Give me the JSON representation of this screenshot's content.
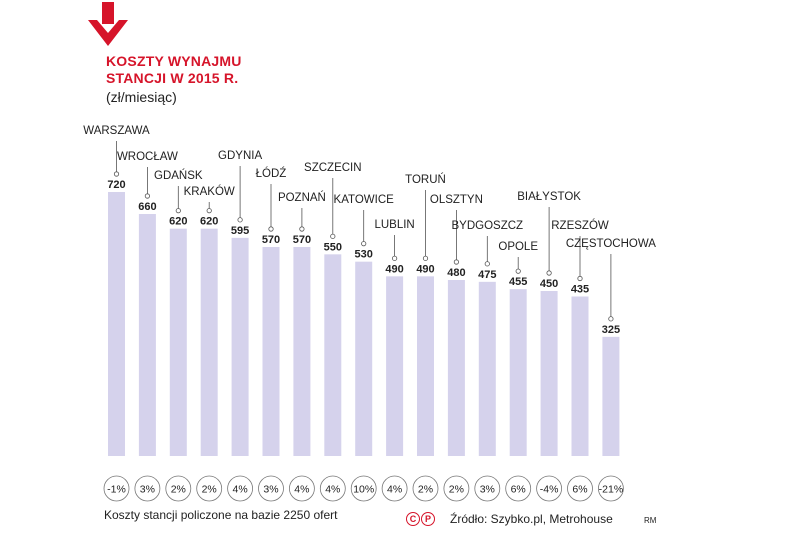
{
  "colors": {
    "accent": "#d6142a",
    "bar": "#d5d2ec",
    "text": "#222222"
  },
  "header": {
    "title_line1": "KOSZTY WYNAJMU",
    "title_line2": "STANCJI W 2015 R.",
    "unit": "(zł/miesiąc)",
    "arrow_icon": "down-arrow-icon"
  },
  "footer": {
    "note": "Koszty stancji policzone na bazie 2250 ofert",
    "logo_c": "C",
    "logo_p": "P",
    "source": "Źródło: Szybko.pl, Metrohouse",
    "author": "RM"
  },
  "chart_data": {
    "type": "bar",
    "categories": [
      "WARSZAWA",
      "WROCŁAW",
      "GDAŃSK",
      "KRAKÓW",
      "GDYNIA",
      "ŁÓDŹ",
      "POZNAŃ",
      "SZCZECIN",
      "KATOWICE",
      "LUBLIN",
      "TORUŃ",
      "OLSZTYN",
      "BYDGOSZCZ",
      "OPOLE",
      "BIAŁYSTOK",
      "RZESZÓW",
      "CZĘSTOCHOWA"
    ],
    "values": [
      720,
      660,
      620,
      620,
      595,
      570,
      570,
      550,
      530,
      490,
      490,
      480,
      475,
      455,
      450,
      435,
      325
    ],
    "value_labels": [
      "720",
      "660",
      "620",
      "620",
      "595",
      "570",
      "570",
      "550",
      "530",
      "490",
      "490",
      "480",
      "475",
      "455",
      "450",
      "435",
      "325"
    ],
    "changes": [
      "-1%",
      "3%",
      "2%",
      "2%",
      "4%",
      "3%",
      "4%",
      "4%",
      "10%",
      "4%",
      "2%",
      "2%",
      "3%",
      "6%",
      "-4%",
      "6%",
      "-21%"
    ],
    "title": "KOSZTY WYNAJMU STANCJI W 2015 R.",
    "ylabel": "(zł/miesiąc)",
    "ylim": [
      0,
      720
    ],
    "grid": false,
    "legend": "none"
  }
}
